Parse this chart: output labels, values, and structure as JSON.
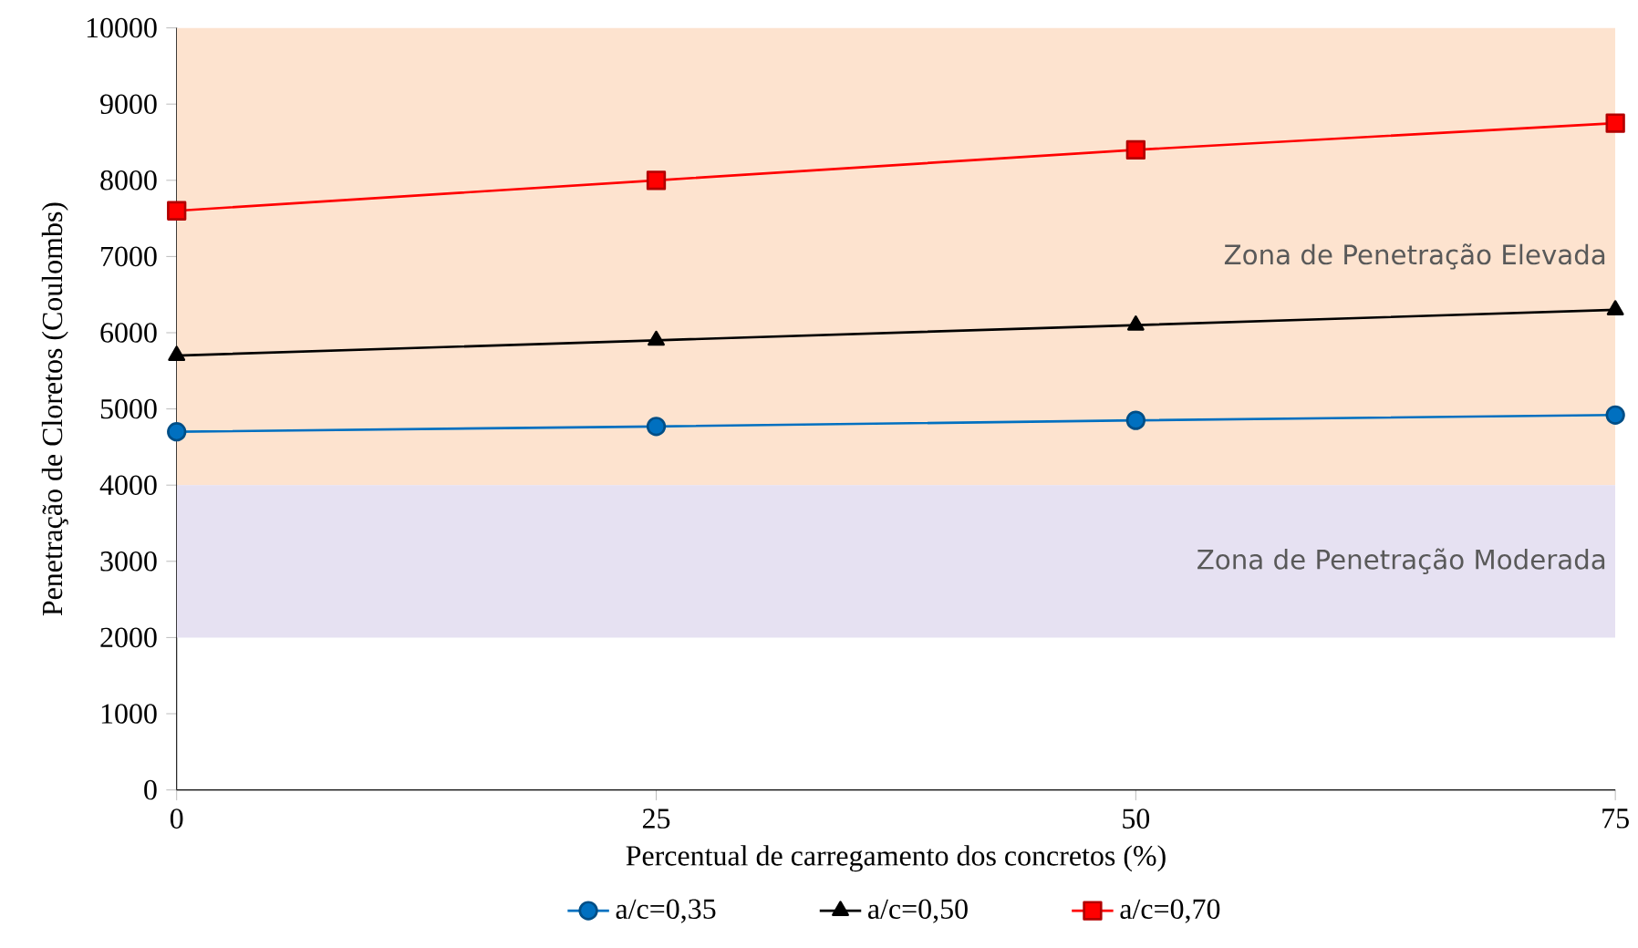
{
  "chart_data": {
    "type": "line",
    "xlabel": "Percentual  de carregamento dos concretos (%)",
    "ylabel": "Penetração de Cloretos (Coulombs)",
    "x": [
      0,
      25,
      50,
      75
    ],
    "series": [
      {
        "name": "a/c=0,35",
        "color": "#0070c0",
        "marker": "circle",
        "values": [
          4700,
          4770,
          4850,
          4920
        ]
      },
      {
        "name": "a/c=0,50",
        "color": "#000000",
        "marker": "triangle",
        "values": [
          5700,
          5900,
          6100,
          6300
        ]
      },
      {
        "name": "a/c=0,70",
        "color": "#ff0000",
        "marker": "square",
        "values": [
          7600,
          8000,
          8400,
          8750
        ]
      }
    ],
    "xlim": [
      0,
      75
    ],
    "xticks": [
      0,
      25,
      50,
      75
    ],
    "ylim": [
      0,
      10000
    ],
    "yticks": [
      0,
      1000,
      2000,
      3000,
      4000,
      5000,
      6000,
      7000,
      8000,
      9000,
      10000
    ],
    "bands": [
      {
        "axis": "y",
        "from": 4000,
        "to": 10000,
        "label": "Zona de Penetração Elevada",
        "color": "#fde3cf"
      },
      {
        "axis": "y",
        "from": 2000,
        "to": 4000,
        "label": "Zona de Penetração Moderada",
        "color": "#e6e1f2"
      }
    ],
    "grid": false,
    "legend": "bottom",
    "line_style": "solid"
  }
}
